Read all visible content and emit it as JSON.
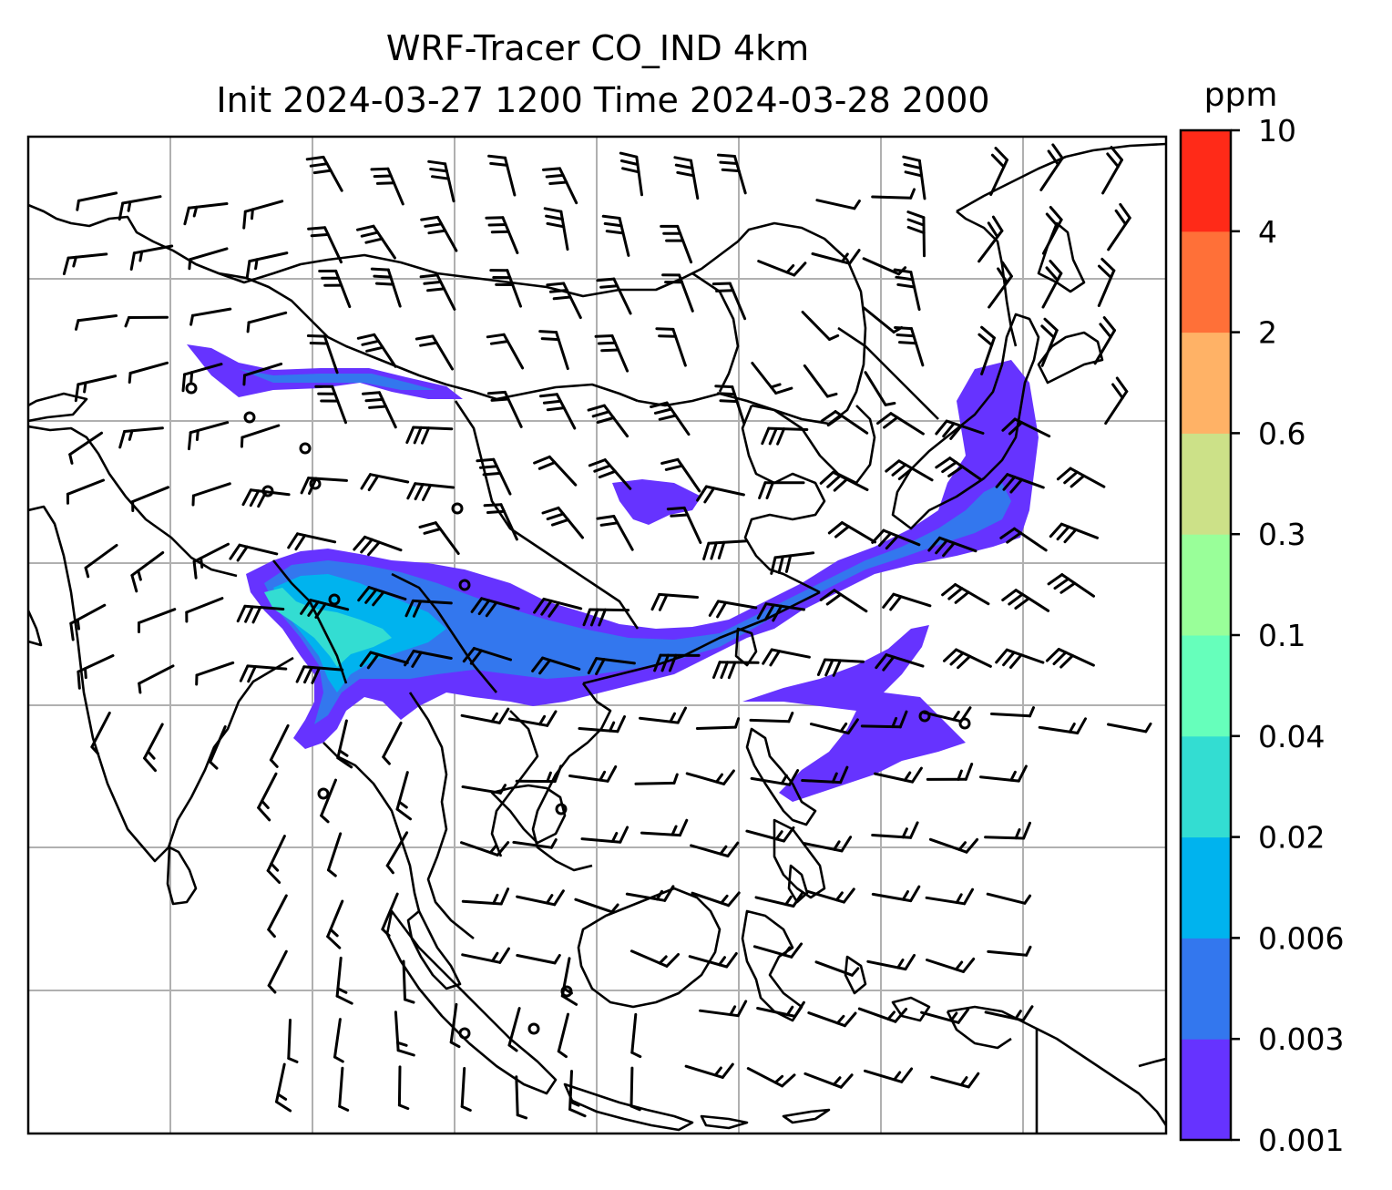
{
  "title": {
    "line1": "WRF-Tracer CO_IND 4km",
    "line2": "Init 2024-03-27 1200 Time 2024-03-28 2000"
  },
  "colorbar": {
    "unit": "ppm",
    "levels": [
      "0.001",
      "0.003",
      "0.006",
      "0.02",
      "0.04",
      "0.1",
      "0.3",
      "0.6",
      "2",
      "4",
      "10"
    ],
    "colors": [
      "#6633ff",
      "#3377ee",
      "#00b3ee",
      "#33ddd2",
      "#66ffbb",
      "#99ff99",
      "#cce188",
      "#ffb266",
      "#ff7038",
      "#ff2a18"
    ]
  },
  "map": {
    "gridlines": true,
    "features": [
      "coastlines",
      "country-borders",
      "wind-barbs",
      "tracer-concentration-fill"
    ]
  }
}
